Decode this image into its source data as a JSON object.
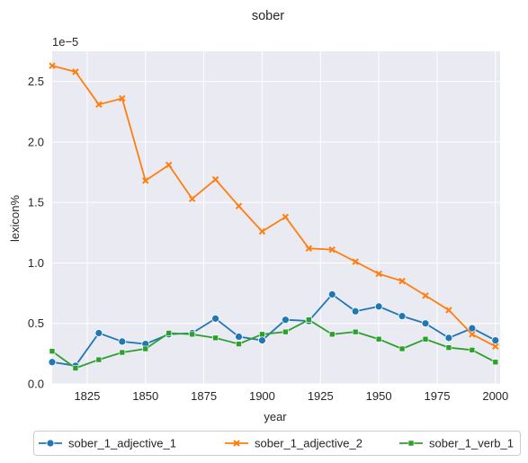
{
  "chart_data": {
    "type": "line",
    "title": "sober",
    "xlabel": "year",
    "ylabel": "lexicon%",
    "y_offset_label": "1e−5",
    "xlim": [
      1810,
      2002
    ],
    "ylim": [
      0,
      2.75
    ],
    "y_scale_note": "values in units of 1e-5",
    "x_ticks": [
      1825,
      1850,
      1875,
      1900,
      1925,
      1950,
      1975,
      2000
    ],
    "y_ticks": [
      0.0,
      0.5,
      1.0,
      1.5,
      2.0,
      2.5
    ],
    "x_tick_labels": [
      "1825",
      "1850",
      "1875",
      "1900",
      "1925",
      "1950",
      "1975",
      "2000"
    ],
    "y_tick_labels": [
      "0.0",
      "0.5",
      "1.0",
      "1.5",
      "2.0",
      "2.5"
    ],
    "grid": true,
    "legend_position": "bottom-center",
    "x": [
      1810,
      1820,
      1830,
      1840,
      1850,
      1860,
      1870,
      1880,
      1890,
      1900,
      1910,
      1920,
      1930,
      1940,
      1950,
      1960,
      1970,
      1980,
      1990,
      2000
    ],
    "series": [
      {
        "name": "sober_1_adjective_1",
        "color": "#1f77b4",
        "marker": "circle",
        "values": [
          0.18,
          0.15,
          0.42,
          0.35,
          0.33,
          0.41,
          0.42,
          0.54,
          0.39,
          0.36,
          0.53,
          0.52,
          0.74,
          0.6,
          0.64,
          0.56,
          0.5,
          0.38,
          0.46,
          0.36
        ]
      },
      {
        "name": "sober_1_adjective_2",
        "color": "#ff7f0e",
        "marker": "x",
        "values": [
          2.63,
          2.58,
          2.31,
          2.36,
          1.68,
          1.81,
          1.53,
          1.69,
          1.47,
          1.26,
          1.38,
          1.12,
          1.11,
          1.01,
          0.91,
          0.85,
          0.73,
          0.61,
          0.41,
          0.31
        ]
      },
      {
        "name": "sober_1_verb_1",
        "color": "#2ca02c",
        "marker": "square",
        "values": [
          0.27,
          0.13,
          0.2,
          0.26,
          0.29,
          0.42,
          0.41,
          0.38,
          0.33,
          0.41,
          0.43,
          0.53,
          0.41,
          0.43,
          0.37,
          0.29,
          0.37,
          0.3,
          0.28,
          0.18
        ]
      }
    ]
  },
  "style": {
    "plot_background": "#eaeaf2",
    "grid_color": "#ffffff"
  }
}
